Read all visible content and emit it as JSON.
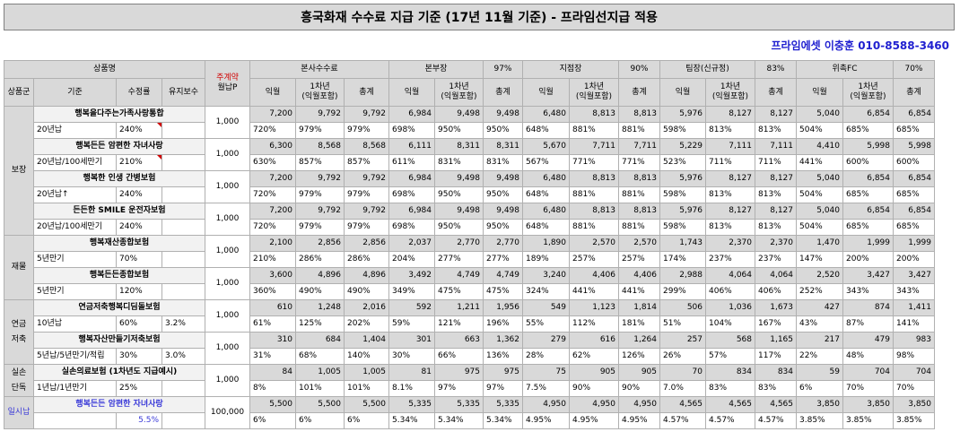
{
  "title": "흥국화재 수수료 지급 기준 (17년 11월 기준) - 프라임선지급 적용",
  "contact": "프라임에셋 이충훈 010-8588-3460",
  "header": {
    "product_name": "상품명",
    "monthly_prem_line1": "주계약",
    "monthly_prem_line2": "월납P",
    "groups": [
      {
        "label": "본사수수료",
        "pct": ""
      },
      {
        "label": "본부장",
        "pct": "97%"
      },
      {
        "label": "지점장",
        "pct": "90%"
      },
      {
        "label": "팀장(신규정)",
        "pct": "83%"
      },
      {
        "label": "위촉FC",
        "pct": "70%"
      }
    ],
    "product_group": "상품군",
    "basis": "기준",
    "adj_rate": "수정률",
    "maintenance": "유지보수",
    "sub_col1": "익월",
    "sub_col2_line1": "1차년",
    "sub_col2_line2": "(익월포함)",
    "sub_col3": "총계"
  },
  "categories": [
    {
      "label": "보장",
      "rows": 8
    },
    {
      "label": "재물",
      "rows": 4
    },
    {
      "label": "연금\n저축",
      "rows": 4
    },
    {
      "label": "실손\n단독",
      "rows": 2
    },
    {
      "label": "일시납",
      "rows": 2
    }
  ],
  "products": [
    {
      "name": "행복을다주는가족사랑통합",
      "basis": "20년납",
      "rate": "240%",
      "maint": "",
      "prem": "1,000",
      "amt": [
        "7,200",
        "9,792",
        "9,792",
        "6,984",
        "9,498",
        "9,498",
        "6,480",
        "8,813",
        "8,813",
        "5,976",
        "8,127",
        "8,127",
        "5,040",
        "6,854",
        "6,854"
      ],
      "pct": [
        "720%",
        "979%",
        "979%",
        "698%",
        "950%",
        "950%",
        "648%",
        "881%",
        "881%",
        "598%",
        "813%",
        "813%",
        "504%",
        "685%",
        "685%"
      ]
    },
    {
      "name": "행복든든 암편한 자녀사랑",
      "basis": "20년납/100세만기",
      "rate": "210%",
      "maint": "",
      "prem": "1,000",
      "amt": [
        "6,300",
        "8,568",
        "8,568",
        "6,111",
        "8,311",
        "8,311",
        "5,670",
        "7,711",
        "7,711",
        "5,229",
        "7,111",
        "7,111",
        "4,410",
        "5,998",
        "5,998"
      ],
      "pct": [
        "630%",
        "857%",
        "857%",
        "611%",
        "831%",
        "831%",
        "567%",
        "771%",
        "771%",
        "523%",
        "711%",
        "711%",
        "441%",
        "600%",
        "600%"
      ]
    },
    {
      "name": "행복한 인생 간병보험",
      "basis": "20년납↑",
      "rate": "240%",
      "maint": "",
      "prem": "1,000",
      "amt": [
        "7,200",
        "9,792",
        "9,792",
        "6,984",
        "9,498",
        "9,498",
        "6,480",
        "8,813",
        "8,813",
        "5,976",
        "8,127",
        "8,127",
        "5,040",
        "6,854",
        "6,854"
      ],
      "pct": [
        "720%",
        "979%",
        "979%",
        "698%",
        "950%",
        "950%",
        "648%",
        "881%",
        "881%",
        "598%",
        "813%",
        "813%",
        "504%",
        "685%",
        "685%"
      ]
    },
    {
      "name": "든든한 SMILE 운전자보험",
      "basis": "20년납/100세만기",
      "rate": "240%",
      "maint": "",
      "prem": "1,000",
      "amt": [
        "7,200",
        "9,792",
        "9,792",
        "6,984",
        "9,498",
        "9,498",
        "6,480",
        "8,813",
        "8,813",
        "5,976",
        "8,127",
        "8,127",
        "5,040",
        "6,854",
        "6,854"
      ],
      "pct": [
        "720%",
        "979%",
        "979%",
        "698%",
        "950%",
        "950%",
        "648%",
        "881%",
        "881%",
        "598%",
        "813%",
        "813%",
        "504%",
        "685%",
        "685%"
      ]
    },
    {
      "name": "행복재산종합보험",
      "basis": "5년만기",
      "rate": "70%",
      "maint": "",
      "prem": "1,000",
      "amt": [
        "2,100",
        "2,856",
        "2,856",
        "2,037",
        "2,770",
        "2,770",
        "1,890",
        "2,570",
        "2,570",
        "1,743",
        "2,370",
        "2,370",
        "1,470",
        "1,999",
        "1,999"
      ],
      "pct": [
        "210%",
        "286%",
        "286%",
        "204%",
        "277%",
        "277%",
        "189%",
        "257%",
        "257%",
        "174%",
        "237%",
        "237%",
        "147%",
        "200%",
        "200%"
      ]
    },
    {
      "name": "행복든든종합보험",
      "basis": "5년만기",
      "rate": "120%",
      "maint": "",
      "prem": "1,000",
      "amt": [
        "3,600",
        "4,896",
        "4,896",
        "3,492",
        "4,749",
        "4,749",
        "3,240",
        "4,406",
        "4,406",
        "2,988",
        "4,064",
        "4,064",
        "2,520",
        "3,427",
        "3,427"
      ],
      "pct": [
        "360%",
        "490%",
        "490%",
        "349%",
        "475%",
        "475%",
        "324%",
        "441%",
        "441%",
        "299%",
        "406%",
        "406%",
        "252%",
        "343%",
        "343%"
      ]
    },
    {
      "name": "연금저축행복디딤돌보험",
      "basis": "10년납",
      "rate": "60%",
      "maint": "3.2%",
      "prem": "1,000",
      "amt": [
        "610",
        "1,248",
        "2,016",
        "592",
        "1,211",
        "1,956",
        "549",
        "1,123",
        "1,814",
        "506",
        "1,036",
        "1,673",
        "427",
        "874",
        "1,411"
      ],
      "pct": [
        "61%",
        "125%",
        "202%",
        "59%",
        "121%",
        "196%",
        "55%",
        "112%",
        "181%",
        "51%",
        "104%",
        "167%",
        "43%",
        "87%",
        "141%"
      ]
    },
    {
      "name": "행복자산만들기저축보험",
      "basis": "5년납/5년만기/적립",
      "rate": "30%",
      "maint": "3.0%",
      "prem": "1,000",
      "amt": [
        "310",
        "684",
        "1,404",
        "301",
        "663",
        "1,362",
        "279",
        "616",
        "1,264",
        "257",
        "568",
        "1,165",
        "217",
        "479",
        "983"
      ],
      "pct": [
        "31%",
        "68%",
        "140%",
        "30%",
        "66%",
        "136%",
        "28%",
        "62%",
        "126%",
        "26%",
        "57%",
        "117%",
        "22%",
        "48%",
        "98%"
      ]
    },
    {
      "name": "실손의료보험 (1차년도 지급예시)",
      "basis": "1년납/1년만기",
      "rate": "25%",
      "maint": "",
      "prem": "1,000",
      "amt": [
        "84",
        "1,005",
        "1,005",
        "81",
        "975",
        "975",
        "75",
        "905",
        "905",
        "70",
        "834",
        "834",
        "59",
        "704",
        "704"
      ],
      "pct": [
        "8%",
        "101%",
        "101%",
        "8.1%",
        "97%",
        "97%",
        "7.5%",
        "90%",
        "90%",
        "7.0%",
        "83%",
        "83%",
        "6%",
        "70%",
        "70%"
      ]
    },
    {
      "name": "행복든든 암편한 자녀사랑",
      "basis": "",
      "rate": "5.5%",
      "maint": "",
      "prem": "100,000",
      "amt": [
        "5,500",
        "5,500",
        "5,500",
        "5,335",
        "5,335",
        "5,335",
        "4,950",
        "4,950",
        "4,950",
        "4,565",
        "4,565",
        "4,565",
        "3,850",
        "3,850",
        "3,850"
      ],
      "pct": [
        "6%",
        "6%",
        "6%",
        "5.34%",
        "5.34%",
        "5.34%",
        "4.95%",
        "4.95%",
        "4.95%",
        "4.57%",
        "4.57%",
        "4.57%",
        "3.85%",
        "3.85%",
        "3.85%"
      ]
    }
  ]
}
